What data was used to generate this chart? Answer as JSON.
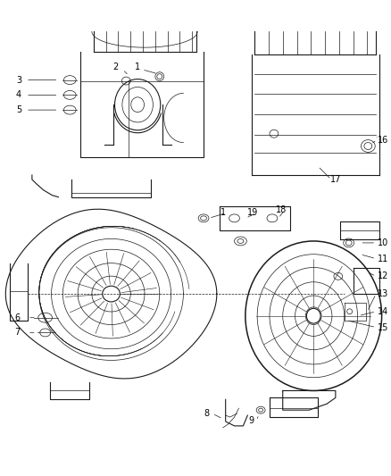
{
  "bg_color": "#ffffff",
  "line_color": "#1a1a1a",
  "label_color": "#000000",
  "fig_width": 4.38,
  "fig_height": 5.33,
  "dpi": 100,
  "label_fontsize": 7.0,
  "lw_main": 0.8,
  "lw_thin": 0.5,
  "lw_thick": 1.1
}
